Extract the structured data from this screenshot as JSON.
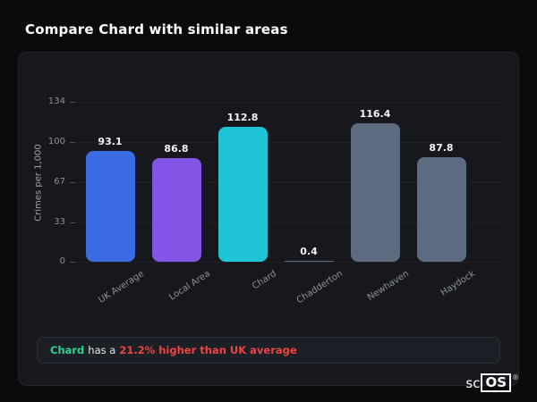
{
  "page": {
    "title": "Compare Chard with similar areas"
  },
  "chart_data": {
    "type": "bar",
    "title": "Compare Chard with similar areas",
    "xlabel": "",
    "ylabel": "Crimes per 1,000",
    "ylim": [
      0,
      134
    ],
    "yticks": [
      0,
      33,
      67,
      100,
      134
    ],
    "grid": "dotted-horizontal",
    "legend": "none",
    "categories": [
      "UK Average",
      "Local Area",
      "Chard",
      "Chadderton",
      "Newhaven",
      "Haydock"
    ],
    "values": [
      93.1,
      86.8,
      112.8,
      0.4,
      116.4,
      87.8
    ],
    "bar_colors": [
      "#3b6be0",
      "#8454e6",
      "#1fc4d6",
      "#5d6b80",
      "#5d6b80",
      "#5d6b80"
    ]
  },
  "footer_note": {
    "area_label": "Chard",
    "connector": "has a",
    "stat_text": "21.2% higher than UK average",
    "area_color": "#29d398",
    "stat_color": "#ef4444"
  },
  "logo": {
    "prefix": "sc",
    "boxed": "OS",
    "registered": "®"
  }
}
